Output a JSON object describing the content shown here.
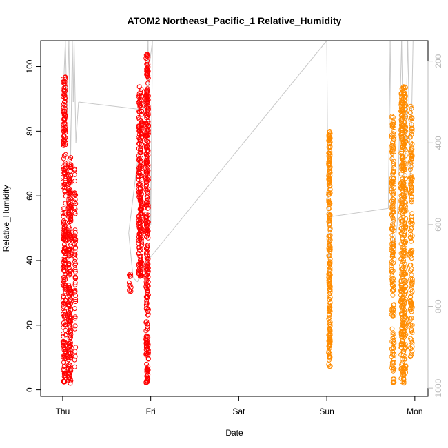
{
  "chart_data": {
    "type": "scatter",
    "title": "ATOM2 Northeast_Pacific_1 Relative_Humidity",
    "xlabel": "Date",
    "ylabel": "Relative_Humidity",
    "x_ticks": [
      "Thu",
      "Fri",
      "Sat",
      "Sun",
      "Mon"
    ],
    "x_range_days": [
      -0.25,
      4.15
    ],
    "y_ticks": [
      0,
      20,
      40,
      60,
      80,
      100
    ],
    "ylim": [
      -2,
      108
    ],
    "y2_label": "",
    "y2_ticks": [
      200,
      400,
      600,
      800,
      1000
    ],
    "y2_lim": [
      1020,
      150
    ],
    "y2_reversed": true,
    "grid": false,
    "legend": "none",
    "colors": {
      "series1": "#ff0000",
      "series2": "#ff8c00",
      "pressure_line": "#c8c8c8",
      "right_axis": "#bbbbbb"
    },
    "series": [
      {
        "color": "#ff0000",
        "clusters": [
          {
            "day": 0.02,
            "width": 0.035,
            "ymin": 2,
            "ymax": 97,
            "n": 260
          },
          {
            "day": 0.08,
            "width": 0.03,
            "ymin": 2,
            "ymax": 72,
            "n": 200
          },
          {
            "day": 0.14,
            "width": 0.015,
            "ymin": 7,
            "ymax": 70,
            "n": 60
          },
          {
            "day": 0.77,
            "width": 0.03,
            "ymin": 30,
            "ymax": 36,
            "n": 12
          },
          {
            "day": 0.88,
            "width": 0.04,
            "ymin": 35,
            "ymax": 94,
            "n": 220
          },
          {
            "day": 0.96,
            "width": 0.03,
            "ymin": 2,
            "ymax": 104,
            "n": 320
          }
        ]
      },
      {
        "color": "#ff8c00",
        "clusters": [
          {
            "day": 3.03,
            "width": 0.02,
            "ymin": 7,
            "ymax": 80,
            "n": 220
          },
          {
            "day": 3.75,
            "width": 0.03,
            "ymin": 2,
            "ymax": 85,
            "n": 180
          },
          {
            "day": 3.87,
            "width": 0.06,
            "ymin": 2,
            "ymax": 94,
            "n": 420
          },
          {
            "day": 3.96,
            "width": 0.025,
            "ymin": 10,
            "ymax": 88,
            "n": 140
          }
        ]
      }
    ],
    "pressure_line": [
      [
        0.0,
        320
      ],
      [
        0.03,
        150
      ],
      [
        0.05,
        330
      ],
      [
        0.07,
        150
      ],
      [
        0.09,
        440
      ],
      [
        0.11,
        150
      ],
      [
        0.12,
        300
      ],
      [
        0.13,
        150
      ],
      [
        0.15,
        400
      ],
      [
        0.18,
        300
      ],
      [
        0.95,
        320
      ],
      [
        0.97,
        150
      ],
      [
        1.0,
        600
      ],
      [
        1.02,
        150
      ],
      [
        0.75,
        620
      ],
      [
        0.8,
        730
      ],
      [
        0.85,
        740
      ],
      [
        0.92,
        700
      ],
      [
        3.0,
        150
      ],
      [
        3.02,
        720
      ],
      [
        3.05,
        600
      ],
      [
        3.06,
        580
      ],
      [
        3.7,
        560
      ],
      [
        3.72,
        150
      ],
      [
        3.75,
        680
      ],
      [
        3.8,
        600
      ],
      [
        3.85,
        150
      ],
      [
        3.88,
        550
      ],
      [
        3.92,
        150
      ],
      [
        3.95,
        500
      ],
      [
        3.98,
        150
      ]
    ]
  }
}
